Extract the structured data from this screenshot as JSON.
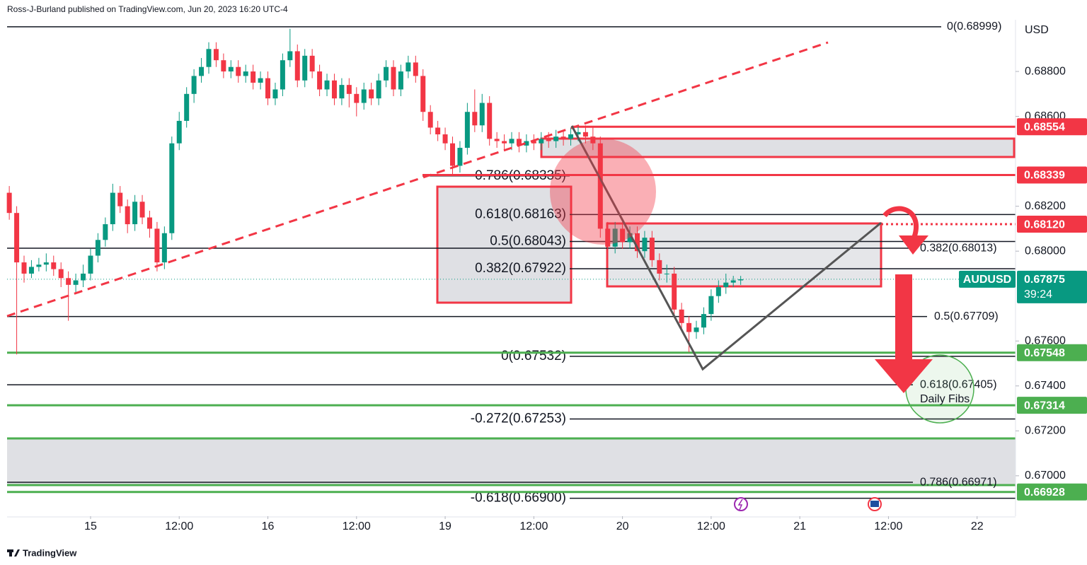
{
  "chart_data": {
    "type": "candlestick",
    "header": "Ross-J-Burland published on TradingView.com, Jun 20, 2023 16:20 UTC-4",
    "brand": "TradingView",
    "currency": "USD",
    "symbol": "AUDUSD",
    "countdown": "39:24",
    "annotation": "Daily  Fibs",
    "up_color": "#089981",
    "down_color": "#f23645",
    "xlim": [
      -11.3,
      125.2
    ],
    "ylim": [
      0.6682,
      0.6903
    ],
    "xticks": [
      {
        "value": 0,
        "label": "15"
      },
      {
        "value": 12,
        "label": "12:00"
      },
      {
        "value": 24,
        "label": "16"
      },
      {
        "value": 36,
        "label": "12:00"
      },
      {
        "value": 48,
        "label": "19"
      },
      {
        "value": 60,
        "label": "12:00"
      },
      {
        "value": 72,
        "label": "20"
      },
      {
        "value": 84,
        "label": "12:00"
      },
      {
        "value": 96,
        "label": "21"
      },
      {
        "value": 108,
        "label": "12:00"
      },
      {
        "value": 120,
        "label": "22"
      }
    ],
    "yticks": [
      {
        "value": 0.688,
        "label": "0.68800"
      },
      {
        "value": 0.686,
        "label": "0.68600"
      },
      {
        "value": 0.682,
        "label": "0.68200"
      },
      {
        "value": 0.68,
        "label": "0.68000"
      },
      {
        "value": 0.676,
        "label": "0.67600"
      },
      {
        "value": 0.674,
        "label": "0.67400"
      },
      {
        "value": 0.672,
        "label": "0.67200"
      },
      {
        "value": 0.67,
        "label": "0.67000"
      }
    ],
    "fib_levels": [
      {
        "label": "0(0.68999)",
        "price": 0.68999
      },
      {
        "label": "0.786(0.68335)",
        "price": 0.68335
      },
      {
        "label": "0.618(0.68163)",
        "price": 0.68163
      },
      {
        "label": "0.5(0.68043)",
        "price": 0.68043
      },
      {
        "label": "0.382(0.67922)",
        "price": 0.67922
      },
      {
        "label": "0(0.67532)",
        "price": 0.67532
      },
      {
        "label": "-0.272(0.67253)",
        "price": 0.67253
      },
      {
        "label": "-0.618(0.66900)",
        "price": 0.669
      },
      {
        "label": "0.382(0.68013)",
        "price": 0.68013
      },
      {
        "label": "0.5(0.67709)",
        "price": 0.67709
      },
      {
        "label": "0.618(0.67405)",
        "price": 0.67405
      },
      {
        "label": "0.786(0.66971)",
        "price": 0.66971
      }
    ],
    "price_tags": [
      {
        "value": 0.68554,
        "label": "0.68554",
        "color": "#f23645"
      },
      {
        "value": 0.68339,
        "label": "0.68339",
        "color": "#f23645"
      },
      {
        "value": 0.6812,
        "label": "0.68120",
        "color": "#f23645"
      },
      {
        "value": 0.67548,
        "label": "0.67548",
        "color": "#4caf50"
      },
      {
        "value": 0.67314,
        "label": "0.67314",
        "color": "#4caf50"
      },
      {
        "value": 0.66928,
        "label": "0.66928",
        "color": "#4caf50"
      }
    ],
    "last_price": {
      "value": 0.67875,
      "label": "0.67875",
      "color": "#089981"
    },
    "x": [
      -11,
      -10,
      -9,
      -8,
      -7,
      -6,
      -5,
      -4,
      -3,
      -2,
      -1,
      0,
      1,
      2,
      3,
      4,
      5,
      6,
      7,
      8,
      9,
      10,
      11,
      12,
      13,
      14,
      15,
      16,
      17,
      18,
      19,
      20,
      21,
      22,
      23,
      24,
      25,
      26,
      27,
      28,
      29,
      30,
      31,
      32,
      33,
      34,
      35,
      36,
      37,
      38,
      39,
      40,
      41,
      42,
      43,
      44,
      45,
      46,
      47,
      48,
      49,
      50,
      51,
      52,
      53,
      54,
      55,
      56,
      57,
      58,
      59,
      60,
      61,
      62,
      63,
      64,
      65,
      66,
      67,
      68,
      69,
      70,
      71,
      72,
      73,
      74,
      75,
      76,
      77,
      78,
      79,
      80,
      81,
      82,
      83,
      84,
      85,
      86,
      87,
      88
    ],
    "open": [
      0.6826,
      0.6817,
      0.6795,
      0.679,
      0.6793,
      0.6794,
      0.6795,
      0.6792,
      0.6788,
      0.6785,
      0.6787,
      0.679,
      0.6798,
      0.6805,
      0.6812,
      0.6826,
      0.682,
      0.6812,
      0.6822,
      0.6815,
      0.681,
      0.6795,
      0.6808,
      0.6848,
      0.6858,
      0.687,
      0.6878,
      0.6882,
      0.689,
      0.6885,
      0.688,
      0.6882,
      0.6878,
      0.688,
      0.6875,
      0.6877,
      0.6868,
      0.6872,
      0.6885,
      0.6889,
      0.6876,
      0.6887,
      0.688,
      0.6872,
      0.6876,
      0.6868,
      0.6874,
      0.687,
      0.6866,
      0.6872,
      0.6868,
      0.6876,
      0.6882,
      0.6872,
      0.688,
      0.6884,
      0.6878,
      0.6862,
      0.6855,
      0.6852,
      0.6848,
      0.6838,
      0.6846,
      0.6862,
      0.6856,
      0.6866,
      0.685,
      0.6849,
      0.6848,
      0.685,
      0.6847,
      0.6849,
      0.6848,
      0.685,
      0.6849,
      0.6851,
      0.685,
      0.6852,
      0.6853,
      0.6851,
      0.6848,
      0.681,
      0.6802,
      0.681,
      0.6804,
      0.6808,
      0.68,
      0.6806,
      0.6796,
      0.679,
      0.679,
      0.6774,
      0.6768,
      0.6764,
      0.6766,
      0.6772,
      0.678,
      0.6784,
      0.6786,
      0.6787
    ],
    "high": [
      0.6829,
      0.682,
      0.6798,
      0.6796,
      0.6797,
      0.6799,
      0.6798,
      0.6795,
      0.6791,
      0.679,
      0.6794,
      0.6801,
      0.6808,
      0.6815,
      0.683,
      0.6829,
      0.6823,
      0.6825,
      0.6825,
      0.6818,
      0.6813,
      0.6811,
      0.6851,
      0.6862,
      0.6873,
      0.6881,
      0.6886,
      0.6893,
      0.6893,
      0.6888,
      0.6885,
      0.6885,
      0.6883,
      0.6883,
      0.688,
      0.688,
      0.6875,
      0.6888,
      0.6899,
      0.6892,
      0.689,
      0.689,
      0.6883,
      0.6879,
      0.6879,
      0.6877,
      0.6877,
      0.6873,
      0.6875,
      0.6875,
      0.6879,
      0.6885,
      0.6885,
      0.6883,
      0.6887,
      0.6887,
      0.6881,
      0.6865,
      0.6858,
      0.6855,
      0.6851,
      0.6849,
      0.6866,
      0.6872,
      0.687,
      0.6869,
      0.6853,
      0.6852,
      0.6853,
      0.6853,
      0.6852,
      0.6852,
      0.6853,
      0.6853,
      0.6854,
      0.6854,
      0.6855,
      0.6856,
      0.6856,
      0.6855,
      0.6851,
      0.6813,
      0.6813,
      0.6813,
      0.6811,
      0.6811,
      0.6809,
      0.6809,
      0.6799,
      0.6794,
      0.6793,
      0.6777,
      0.6771,
      0.6769,
      0.6775,
      0.6783,
      0.6787,
      0.679,
      0.6789,
      0.6789
    ],
    "low": [
      0.6814,
      0.6754,
      0.6786,
      0.6788,
      0.6791,
      0.6791,
      0.6789,
      0.6784,
      0.6769,
      0.6781,
      0.6784,
      0.6787,
      0.6795,
      0.6802,
      0.6809,
      0.6817,
      0.6808,
      0.6809,
      0.6812,
      0.6806,
      0.6791,
      0.6792,
      0.6805,
      0.6845,
      0.6855,
      0.6866,
      0.6875,
      0.6879,
      0.6882,
      0.6877,
      0.6877,
      0.6875,
      0.6875,
      0.6872,
      0.6872,
      0.6865,
      0.6865,
      0.6869,
      0.6882,
      0.6873,
      0.6873,
      0.6877,
      0.6869,
      0.6869,
      0.6865,
      0.6865,
      0.6864,
      0.686,
      0.6863,
      0.6865,
      0.6865,
      0.6873,
      0.6869,
      0.6869,
      0.6877,
      0.6875,
      0.6858,
      0.6852,
      0.6849,
      0.6845,
      0.6834,
      0.6835,
      0.6843,
      0.6853,
      0.6853,
      0.6847,
      0.6846,
      0.6845,
      0.6845,
      0.6844,
      0.6844,
      0.6845,
      0.6845,
      0.6846,
      0.6846,
      0.6847,
      0.6847,
      0.6849,
      0.6848,
      0.6845,
      0.6806,
      0.6799,
      0.6799,
      0.6801,
      0.6801,
      0.6797,
      0.6797,
      0.6793,
      0.6787,
      0.6786,
      0.6771,
      0.6765,
      0.6755,
      0.6761,
      0.6763,
      0.6769,
      0.6777,
      0.6781,
      0.6784,
      0.6785
    ],
    "close": [
      0.6817,
      0.6795,
      0.679,
      0.6793,
      0.6794,
      0.6795,
      0.6792,
      0.6788,
      0.6785,
      0.6787,
      0.679,
      0.6798,
      0.6805,
      0.6812,
      0.6826,
      0.682,
      0.6812,
      0.6822,
      0.6815,
      0.681,
      0.6795,
      0.6808,
      0.6848,
      0.6858,
      0.687,
      0.6878,
      0.6882,
      0.689,
      0.6885,
      0.688,
      0.6882,
      0.6878,
      0.688,
      0.6875,
      0.6877,
      0.6868,
      0.6872,
      0.6885,
      0.6889,
      0.6876,
      0.6887,
      0.688,
      0.6872,
      0.6876,
      0.6868,
      0.6874,
      0.687,
      0.6866,
      0.6872,
      0.6868,
      0.6876,
      0.6882,
      0.6872,
      0.688,
      0.6884,
      0.6878,
      0.6862,
      0.6855,
      0.6852,
      0.6848,
      0.6838,
      0.6846,
      0.6862,
      0.6856,
      0.6866,
      0.685,
      0.6849,
      0.6848,
      0.685,
      0.6847,
      0.6849,
      0.6848,
      0.685,
      0.6849,
      0.6851,
      0.685,
      0.6852,
      0.6853,
      0.6851,
      0.6848,
      0.681,
      0.6802,
      0.681,
      0.6804,
      0.6808,
      0.68,
      0.6806,
      0.6796,
      0.679,
      0.679,
      0.6774,
      0.6768,
      0.6764,
      0.6766,
      0.6772,
      0.678,
      0.6784,
      0.6786,
      0.6787,
      0.67875
    ]
  }
}
